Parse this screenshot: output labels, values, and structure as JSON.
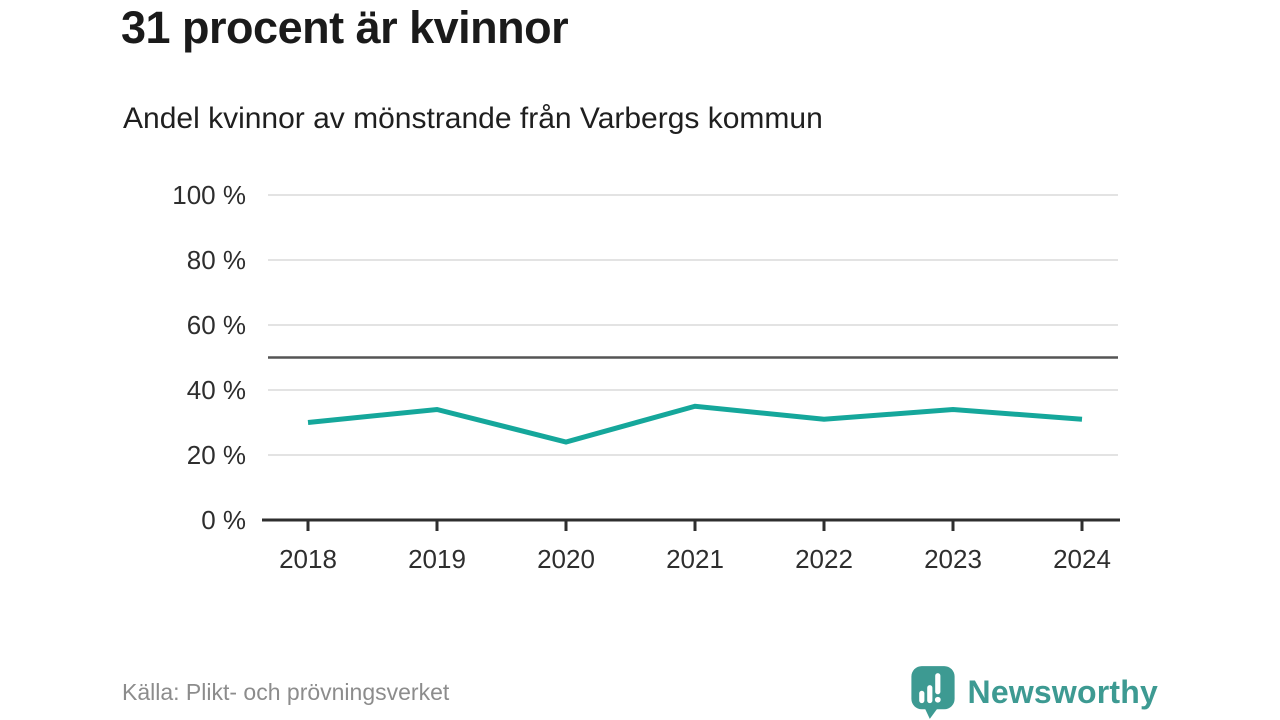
{
  "header": {
    "title": "31 procent är kvinnor",
    "subtitle": "Andel kvinnor av mönstrande från Varbergs kommun"
  },
  "chart_data": {
    "type": "line",
    "title": "31 procent är kvinnor",
    "subtitle": "Andel kvinnor av mönstrande från Varbergs kommun",
    "x": [
      "2018",
      "2019",
      "2020",
      "2021",
      "2022",
      "2023",
      "2024"
    ],
    "series": [
      {
        "name": "Andel kvinnor av mönstrande (%)",
        "values": [
          30,
          34,
          24,
          35,
          31,
          34,
          31
        ]
      }
    ],
    "xlabel": "",
    "ylabel": "",
    "ylim": [
      0,
      100
    ],
    "yticks": [
      0,
      20,
      40,
      60,
      80,
      100
    ],
    "ytick_format": "{v} %",
    "reference_line": 50,
    "grid": true,
    "legend": "none",
    "line_color": "#15a79b"
  },
  "footer": {
    "source": "Källa: Plikt- och prövningsverket",
    "brand": "Newsworthy"
  },
  "colors": {
    "accent": "#15a79b",
    "brand_teal": "#3d9a92",
    "grid": "#e3e3e3",
    "axis": "#2e2e2e",
    "reference": "#555555",
    "text": "#1a1a1a",
    "muted": "#8c8c8c"
  }
}
